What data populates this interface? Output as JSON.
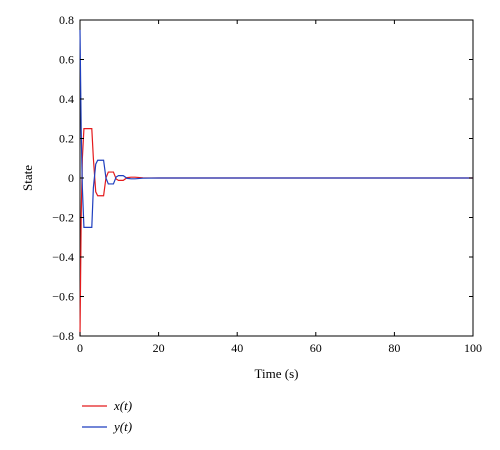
{
  "chart_data": {
    "type": "line",
    "xlabel": "Time (s)",
    "ylabel": "State",
    "xlim": [
      0,
      100
    ],
    "ylim": [
      -0.8,
      0.8
    ],
    "x_ticks": [
      0,
      20,
      40,
      60,
      80,
      100
    ],
    "y_ticks": [
      0.8,
      0.6,
      0.4,
      0.2,
      0,
      -0.2,
      -0.4,
      -0.6,
      -0.8
    ],
    "x_tick_labels": [
      "0",
      "20",
      "40",
      "60",
      "80",
      "100"
    ],
    "y_tick_labels": [
      "0.8",
      "0.6",
      "0.4",
      "0.2",
      "0",
      "−0.2",
      "−0.4",
      "−0.6",
      "−0.8"
    ],
    "grid": false,
    "legend_position": "bottom-left",
    "series": [
      {
        "name": "x(t)",
        "color": "#e41a1c",
        "points": [
          [
            0,
            -0.8
          ],
          [
            0.3,
            -0.2
          ],
          [
            0.6,
            0.1
          ],
          [
            1,
            0.25
          ],
          [
            3,
            0.25
          ],
          [
            3.4,
            0.1
          ],
          [
            4,
            -0.07
          ],
          [
            4.5,
            -0.09
          ],
          [
            6,
            -0.09
          ],
          [
            6.6,
            0
          ],
          [
            7.2,
            0.03
          ],
          [
            8.5,
            0.03
          ],
          [
            9.2,
            -0.005
          ],
          [
            9.8,
            -0.012
          ],
          [
            11,
            -0.012
          ],
          [
            12,
            0.002
          ],
          [
            13,
            0.004
          ],
          [
            14,
            0.004
          ],
          [
            16,
            0.001
          ],
          [
            20,
            0
          ],
          [
            100,
            0
          ]
        ]
      },
      {
        "name": "y(t)",
        "color": "#1f3fbf",
        "points": [
          [
            0,
            0.75
          ],
          [
            0.3,
            0.25
          ],
          [
            0.6,
            -0.05
          ],
          [
            1,
            -0.25
          ],
          [
            3,
            -0.25
          ],
          [
            3.4,
            -0.05
          ],
          [
            4,
            0.07
          ],
          [
            4.5,
            0.09
          ],
          [
            6,
            0.09
          ],
          [
            6.6,
            0
          ],
          [
            7.2,
            -0.03
          ],
          [
            8.5,
            -0.03
          ],
          [
            9.2,
            0.005
          ],
          [
            9.8,
            0.012
          ],
          [
            11,
            0.012
          ],
          [
            12,
            -0.002
          ],
          [
            13,
            -0.004
          ],
          [
            14,
            -0.004
          ],
          [
            16,
            -0.001
          ],
          [
            20,
            0
          ],
          [
            100,
            0
          ]
        ]
      }
    ]
  }
}
